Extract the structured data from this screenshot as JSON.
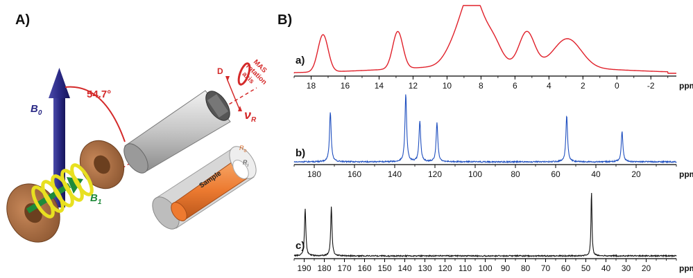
{
  "panel_a": {
    "label": "A)",
    "b0": "B",
    "b0_sub": "0",
    "b1": "B",
    "b1_sub": "1",
    "angle": "54.7°",
    "mas_lines": [
      "MAS",
      "rotation",
      "axis"
    ],
    "d_label": "D",
    "nu": "ν",
    "nu_sub": "R",
    "ro": "R",
    "ro_sub": "o",
    "ri": "R",
    "ri_sub": "i",
    "sample": "Sample",
    "colors": {
      "b0_arrow": "#2b2a86",
      "b1_arrow": "#1f8a3a",
      "angle": "#d42a2a",
      "coil": "#e8e020",
      "disk": "#a0673a",
      "rotor": "#c8c8c8",
      "sample": "#ee7a30"
    }
  },
  "panel_b": {
    "label": "B)",
    "unit_label": "ppm",
    "spectra": [
      {
        "tag": "a)",
        "color": "#e0202a",
        "x_ticks": [
          "18",
          "16",
          "14",
          "12",
          "10",
          "8",
          "6",
          "4",
          "2",
          "0",
          "-2"
        ]
      },
      {
        "tag": "b)",
        "color": "#1f4fbf",
        "x_ticks": [
          "180",
          "160",
          "140",
          "120",
          "100",
          "80",
          "60",
          "40",
          "20"
        ]
      },
      {
        "tag": "c)",
        "color": "#111111",
        "x_ticks": [
          "190",
          "180",
          "170",
          "160",
          "150",
          "140",
          "130",
          "120",
          "110",
          "100",
          "90",
          "80",
          "70",
          "60",
          "50",
          "40",
          "30",
          "20"
        ]
      }
    ]
  },
  "chart_data": [
    {
      "type": "line",
      "title": "a)",
      "xlabel": "ppm",
      "ylabel": "",
      "xlim": [
        19,
        -3.5
      ],
      "x_reversed": true,
      "peaks": [
        {
          "x": 17.3,
          "height": 0.55,
          "width": 0.3
        },
        {
          "x": 12.9,
          "height": 0.55,
          "width": 0.3
        },
        {
          "x": 8.5,
          "height": 1.0,
          "width": 0.6
        },
        {
          "x": 7.3,
          "height": 0.35,
          "width": 0.5
        },
        {
          "x": 9.5,
          "height": 0.3,
          "width": 0.6
        },
        {
          "x": 5.3,
          "height": 0.5,
          "width": 0.45
        },
        {
          "x": 2.9,
          "height": 0.42,
          "width": 0.8
        }
      ]
    },
    {
      "type": "line",
      "title": "b)",
      "xlabel": "ppm",
      "ylabel": "",
      "xlim": [
        190,
        0
      ],
      "x_reversed": true,
      "peaks": [
        {
          "x": 172.0,
          "height": 0.74,
          "width": 0.5
        },
        {
          "x": 134.5,
          "height": 1.0,
          "width": 0.5
        },
        {
          "x": 127.5,
          "height": 0.6,
          "width": 0.5
        },
        {
          "x": 119.0,
          "height": 0.58,
          "width": 0.5
        },
        {
          "x": 54.5,
          "height": 0.68,
          "width": 0.5
        },
        {
          "x": 27.0,
          "height": 0.45,
          "width": 0.5
        }
      ]
    },
    {
      "type": "line",
      "title": "c)",
      "xlabel": "ppm",
      "ylabel": "",
      "xlim": [
        195,
        5
      ],
      "x_reversed": true,
      "peaks": [
        {
          "x": 189.5,
          "height": 0.73,
          "width": 0.4
        },
        {
          "x": 176.5,
          "height": 0.75,
          "width": 0.4
        },
        {
          "x": 47.2,
          "height": 1.0,
          "width": 0.3
        }
      ]
    }
  ]
}
